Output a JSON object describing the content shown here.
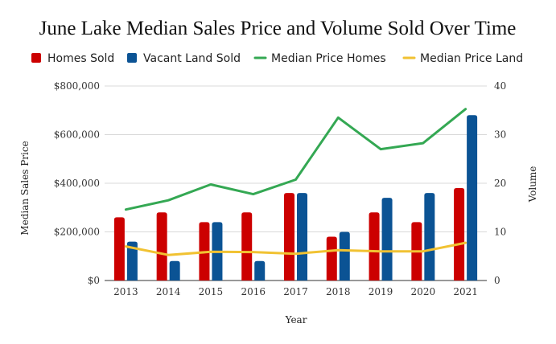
{
  "chart_data": {
    "type": "bar",
    "title": "June Lake Median Sales Price and Volume Sold Over Time",
    "xlabel": "Year",
    "ylabel_left": "Median Sales Price",
    "ylabel_right": "Volume",
    "categories": [
      "2013",
      "2014",
      "2015",
      "2016",
      "2017",
      "2018",
      "2019",
      "2020",
      "2021"
    ],
    "y_left": {
      "lim": [
        0,
        800000
      ],
      "ticks": [
        "$0",
        "$200,000",
        "$400,000",
        "$600,000",
        "$800,000"
      ]
    },
    "y_right": {
      "lim": [
        0,
        40
      ],
      "ticks": [
        "0",
        "10",
        "20",
        "30",
        "40"
      ]
    },
    "grid": true,
    "legend_position": "top",
    "series": [
      {
        "name": "Homes Sold",
        "kind": "bar",
        "axis": "right",
        "color": "#cc0000",
        "values": [
          13,
          14,
          12,
          14,
          18,
          9,
          14,
          12,
          19
        ]
      },
      {
        "name": "Vacant Land Sold",
        "kind": "bar",
        "axis": "right",
        "color": "#0b5394",
        "values": [
          8,
          4,
          12,
          4,
          18,
          10,
          17,
          18,
          34
        ]
      },
      {
        "name": "Median Price Homes",
        "kind": "line",
        "axis": "left",
        "color": "#34a853",
        "values": [
          292000,
          330000,
          395000,
          355000,
          415000,
          670000,
          540000,
          565000,
          705000
        ]
      },
      {
        "name": "Median Price Land",
        "kind": "line",
        "axis": "left",
        "color": "#f1c232",
        "values": [
          140000,
          105000,
          118000,
          117000,
          110000,
          125000,
          120000,
          120000,
          155000
        ]
      }
    ]
  }
}
